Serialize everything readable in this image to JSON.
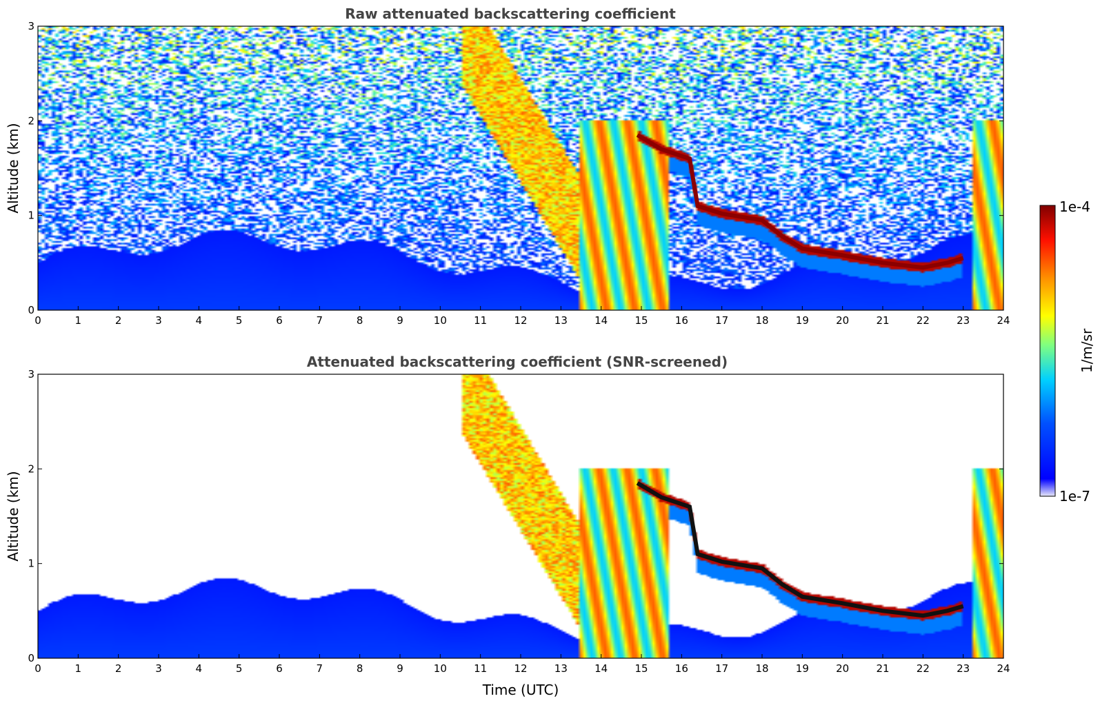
{
  "chart_data": [
    {
      "type": "heatmap",
      "title": "Raw attenuated backscattering coefficient",
      "xlabel": "",
      "ylabel": "Altitude (km)",
      "xlim": [
        0,
        24
      ],
      "ylim": [
        0,
        3
      ],
      "x_ticks": [
        0,
        1,
        2,
        3,
        4,
        5,
        6,
        7,
        8,
        9,
        10,
        11,
        12,
        13,
        14,
        15,
        16,
        17,
        18,
        19,
        20,
        21,
        22,
        23,
        24
      ],
      "y_ticks": [
        0,
        1,
        2,
        3
      ],
      "screened": false,
      "cloud_base_km": [
        {
          "t": 14.9,
          "z": 1.85
        },
        {
          "t": 15.5,
          "z": 1.7
        },
        {
          "t": 16.2,
          "z": 1.6
        },
        {
          "t": 16.4,
          "z": 1.1
        },
        {
          "t": 17.0,
          "z": 1.02
        },
        {
          "t": 18.0,
          "z": 0.95
        },
        {
          "t": 18.5,
          "z": 0.78
        },
        {
          "t": 19.0,
          "z": 0.65
        },
        {
          "t": 20.0,
          "z": 0.58
        },
        {
          "t": 21.0,
          "z": 0.5
        },
        {
          "t": 22.0,
          "z": 0.45
        },
        {
          "t": 22.6,
          "z": 0.5
        },
        {
          "t": 23.0,
          "z": 0.55
        }
      ],
      "fog_precip_intervals_utc": [
        [
          13.5,
          15.7
        ],
        [
          23.2,
          24.0
        ]
      ]
    },
    {
      "type": "heatmap",
      "title": "Attenuated backscattering coefficient (SNR-screened)",
      "xlabel": "Time (UTC)",
      "ylabel": "Altitude (km)",
      "xlim": [
        0,
        24
      ],
      "ylim": [
        0,
        3
      ],
      "x_ticks": [
        0,
        1,
        2,
        3,
        4,
        5,
        6,
        7,
        8,
        9,
        10,
        11,
        12,
        13,
        14,
        15,
        16,
        17,
        18,
        19,
        20,
        21,
        22,
        23,
        24
      ],
      "y_ticks": [
        0,
        1,
        2,
        3
      ],
      "screened": true
    }
  ],
  "colorbar": {
    "label": "1/m/sr",
    "max_label": "1e-4",
    "min_label": "1e-7",
    "scale": "log",
    "colormap": [
      "#e8e8f8",
      "#0000ff",
      "#00a0ff",
      "#00e0e0",
      "#a0ff60",
      "#ffff00",
      "#ff9000",
      "#ff2000",
      "#8b0000"
    ]
  }
}
